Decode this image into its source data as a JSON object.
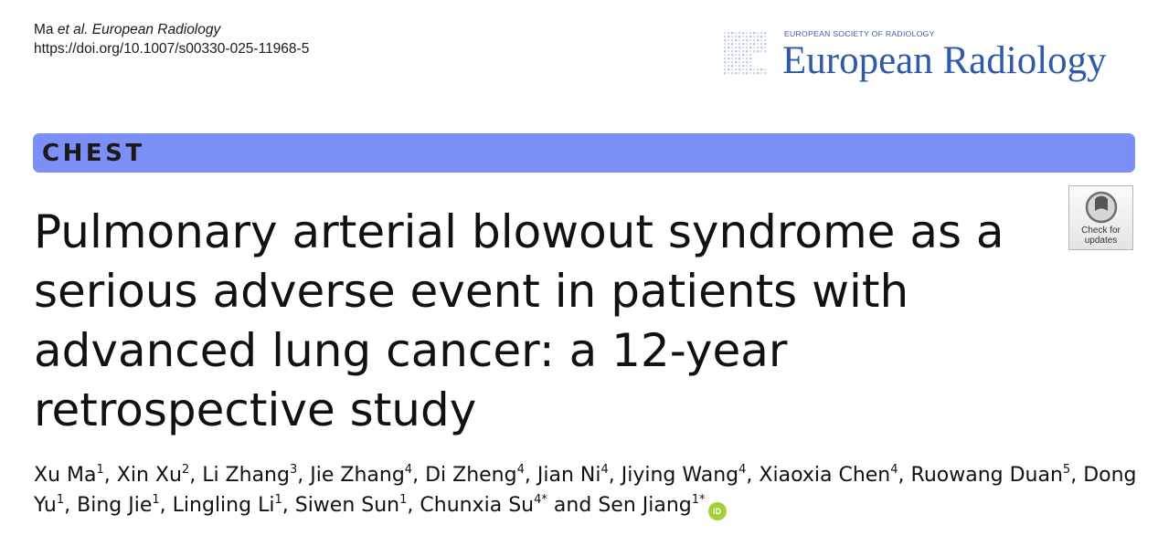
{
  "citation": {
    "authors_short": "Ma",
    "et_al": "et al.",
    "journal": "European Radiology",
    "doi": "https://doi.org/10.1007/s00330-025-11968-5"
  },
  "branding": {
    "society": "EUROPEAN SOCIETY OF RADIOLOGY",
    "journal_name": "European Radiology"
  },
  "section": {
    "label": "CHEST",
    "color": "#7b8ff6"
  },
  "article": {
    "title": "Pulmonary arterial blowout syndrome as a serious adverse event in patients with advanced lung cancer: a 12-year retrospective study"
  },
  "check_updates": {
    "line1": "Check for",
    "line2": "updates",
    "icon": "check-for-updates-icon"
  },
  "authors": [
    {
      "name": "Xu Ma",
      "aff": "1"
    },
    {
      "name": "Xin Xu",
      "aff": "2"
    },
    {
      "name": "Li Zhang",
      "aff": "3"
    },
    {
      "name": "Jie Zhang",
      "aff": "4"
    },
    {
      "name": "Di Zheng",
      "aff": "4"
    },
    {
      "name": "Jian Ni",
      "aff": "4"
    },
    {
      "name": "Jiying Wang",
      "aff": "4"
    },
    {
      "name": "Xiaoxia Chen",
      "aff": "4"
    },
    {
      "name": "Ruowang Duan",
      "aff": "5"
    },
    {
      "name": "Dong Yu",
      "aff": "1"
    },
    {
      "name": "Bing Jie",
      "aff": "1"
    },
    {
      "name": "Lingling Li",
      "aff": "1"
    },
    {
      "name": "Siwen Sun",
      "aff": "1"
    },
    {
      "name": "Chunxia Su",
      "aff": "4*"
    },
    {
      "name": "Sen Jiang",
      "aff": "1*"
    }
  ],
  "author_separator": ", ",
  "author_final_separator": " and ",
  "orcid": {
    "label": "iD",
    "color": "#a6ce39",
    "icon": "orcid-icon"
  }
}
